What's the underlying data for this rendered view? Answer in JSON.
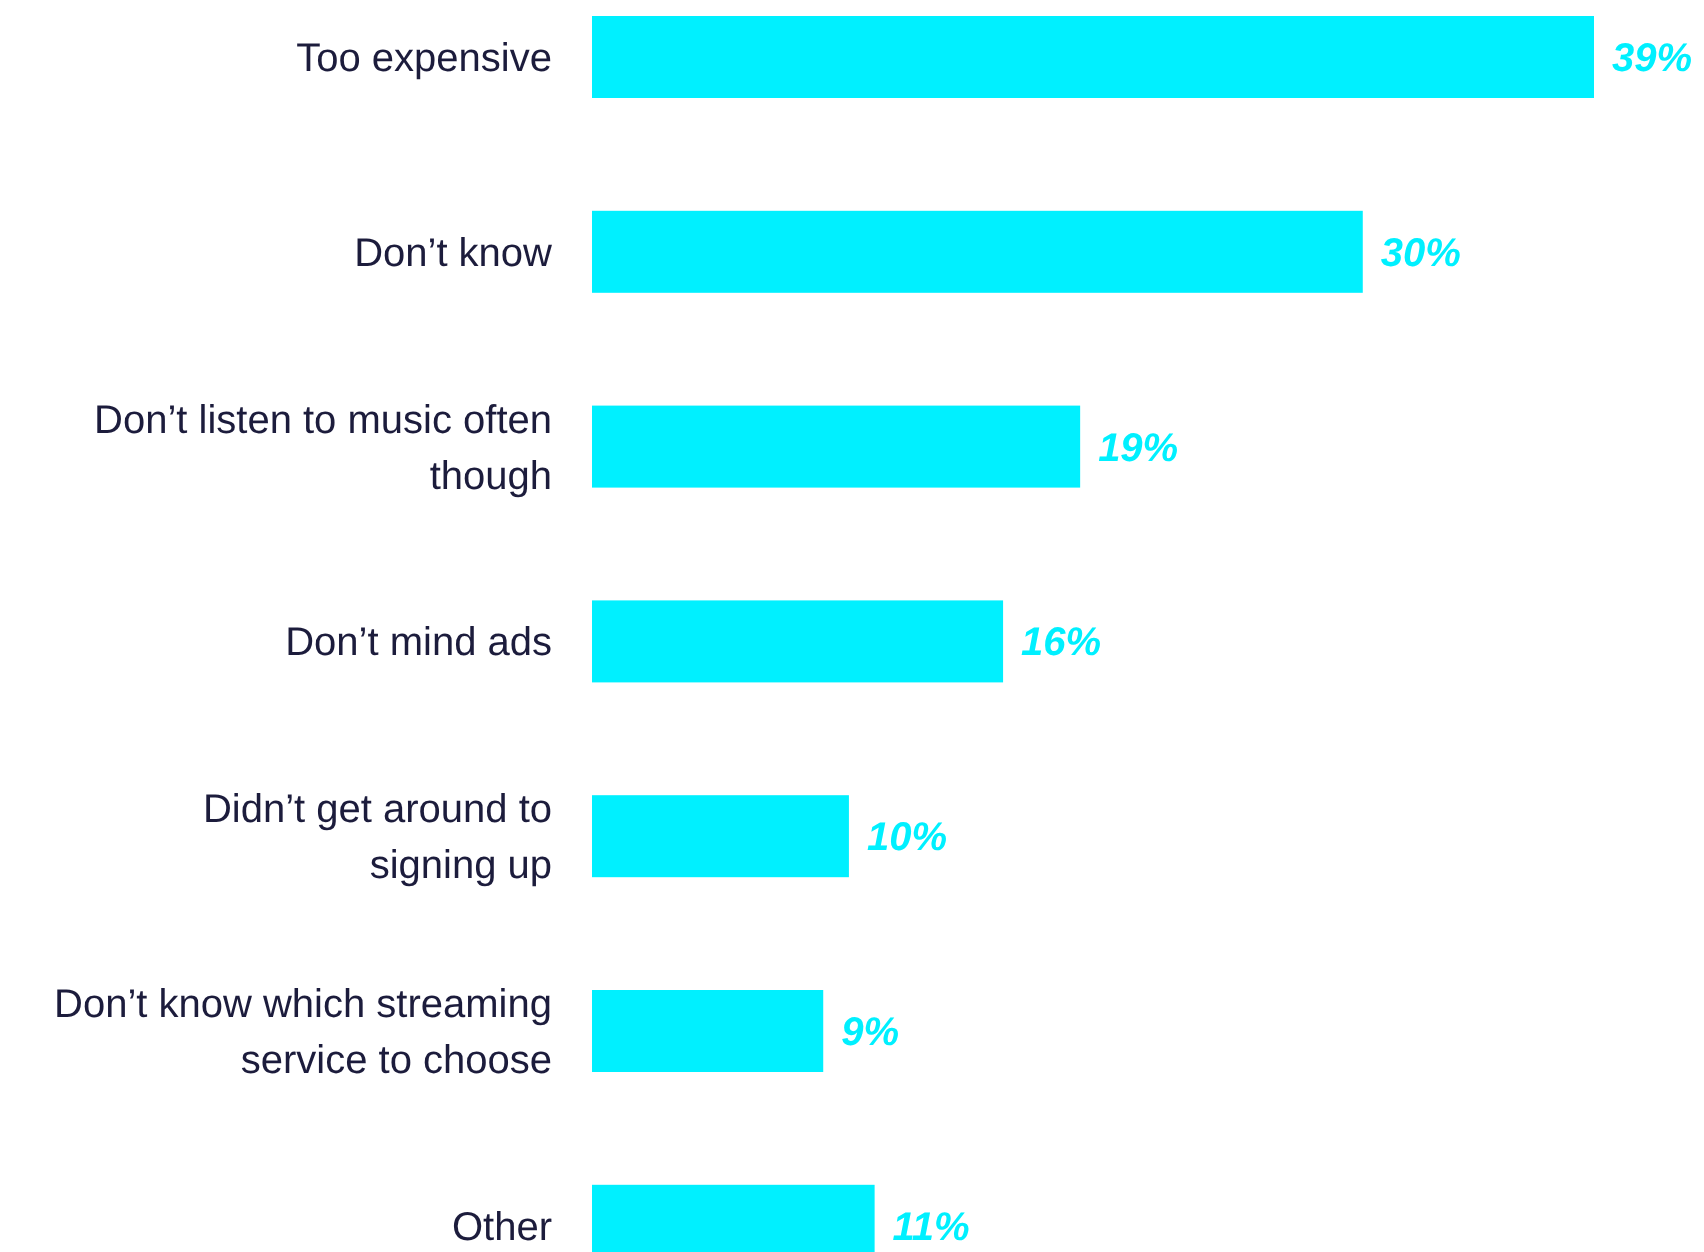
{
  "chart_data": {
    "type": "bar",
    "orientation": "horizontal",
    "categories": [
      "Too expensive",
      "Don’t know",
      "Don’t listen to music often though",
      "Don’t mind ads",
      "Didn’t get around to signing up",
      "Don’t know which streaming service to choose",
      "Other"
    ],
    "values": [
      39,
      30,
      19,
      16,
      10,
      9,
      11
    ],
    "value_labels": [
      "39%",
      "30%",
      "19%",
      "16%",
      "10%",
      "9%",
      "11%"
    ],
    "color": "#00f0ff"
  }
}
